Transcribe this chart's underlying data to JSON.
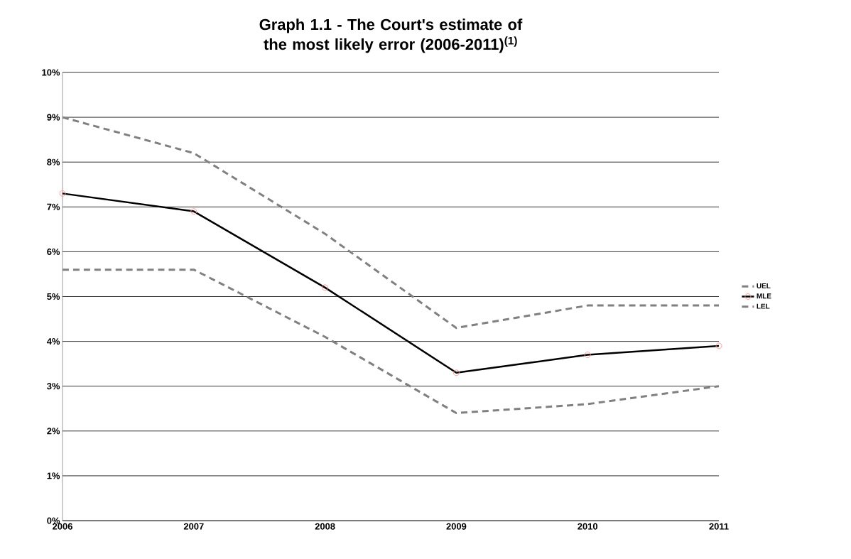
{
  "chart_data": {
    "type": "line",
    "title": "Graph 1.1 - The Court's estimate of the most likely error (2006-2011)$^{(1)}$",
    "categories": [
      "2006",
      "2007",
      "2008",
      "2009",
      "2010",
      "2011"
    ],
    "series": [
      {
        "name": "UEL",
        "color": "#808080",
        "line_style": "dashed",
        "marker": "none",
        "values": [
          9.0,
          8.2,
          6.4,
          4.3,
          4.8,
          4.8
        ]
      },
      {
        "name": "MLE",
        "color": "#000000",
        "line_style": "solid",
        "marker": "circle",
        "values": [
          7.3,
          6.9,
          5.2,
          3.3,
          3.7,
          3.9
        ]
      },
      {
        "name": "LEL",
        "color": "#808080",
        "line_style": "dashed",
        "marker": "none",
        "values": [
          5.6,
          5.6,
          4.1,
          2.4,
          2.6,
          3.0
        ]
      }
    ],
    "ylim": [
      0,
      10
    ],
    "yticks": [
      {
        "value": 0,
        "label": "0%"
      },
      {
        "value": 1,
        "label": "1%"
      },
      {
        "value": 2,
        "label": "2%"
      },
      {
        "value": 3,
        "label": "3%"
      },
      {
        "value": 4,
        "label": "4%"
      },
      {
        "value": 5,
        "label": "5%"
      },
      {
        "value": 6,
        "label": "6%"
      },
      {
        "value": 7,
        "label": "7%"
      },
      {
        "value": 8,
        "label": "8%"
      },
      {
        "value": 9,
        "label": "9%"
      },
      {
        "value": 10,
        "label": "10%"
      }
    ],
    "grid": "y",
    "legend": "right"
  }
}
